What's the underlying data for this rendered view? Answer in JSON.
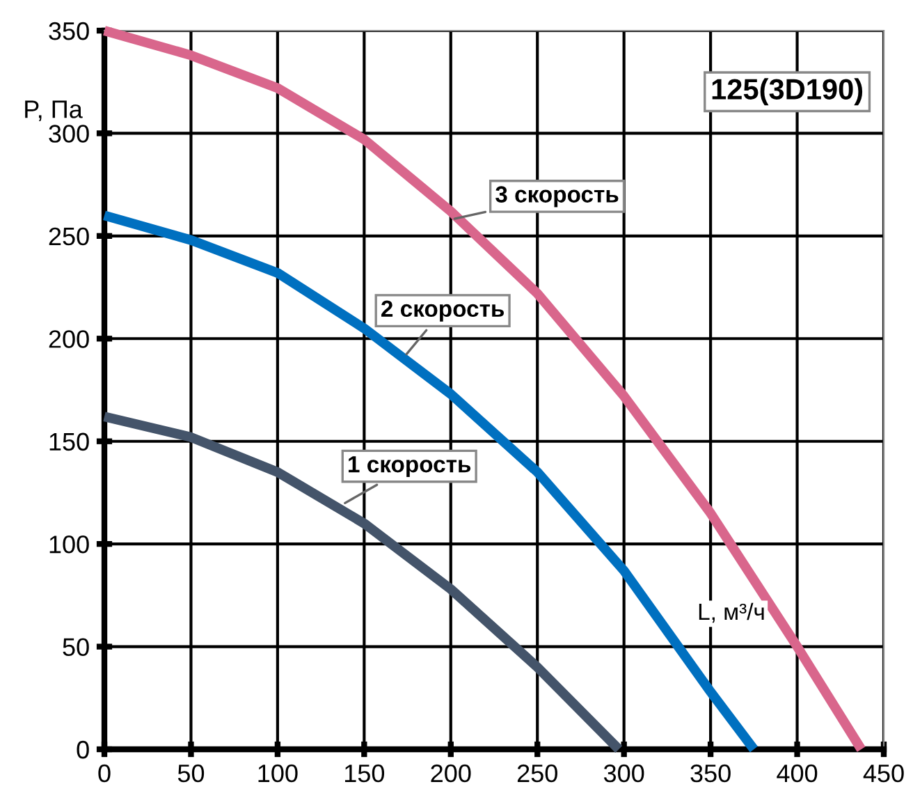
{
  "chart_data": {
    "type": "line",
    "xlabel": "L, м³/ч",
    "ylabel": "P, Па",
    "xlim": [
      0,
      450
    ],
    "ylim": [
      0,
      350
    ],
    "xticks": [
      0,
      50,
      100,
      150,
      200,
      250,
      300,
      350,
      400,
      450
    ],
    "yticks": [
      0,
      50,
      100,
      150,
      200,
      250,
      300,
      350
    ],
    "grid": true,
    "legend": false,
    "marker": "none",
    "line_style": "solid",
    "series": [
      {
        "x": [
          0,
          50,
          100,
          150,
          200,
          250,
          300,
          350,
          400,
          437
        ],
        "values": [
          350,
          338,
          322,
          297,
          262,
          222,
          172,
          115,
          50,
          0
        ],
        "color": "#d9668c"
      },
      {
        "x": [
          0,
          50,
          100,
          150,
          200,
          250,
          300,
          350,
          375
        ],
        "values": [
          260,
          248,
          232,
          205,
          173,
          135,
          87,
          28,
          0
        ],
        "color": "#0070c0"
      },
      {
        "x": [
          0,
          50,
          100,
          150,
          200,
          250,
          297
        ],
        "values": [
          162,
          152,
          135,
          110,
          78,
          40,
          0
        ],
        "color": "#44546a"
      }
    ],
    "annotations": [
      "125(3D190)",
      {
        "text": "3 скорость",
        "x": 200,
        "y": 258
      },
      {
        "text": "2 скорость",
        "x": 173,
        "y": 191
      },
      {
        "text": "1 скорость",
        "x": 137,
        "y": 119
      }
    ]
  }
}
